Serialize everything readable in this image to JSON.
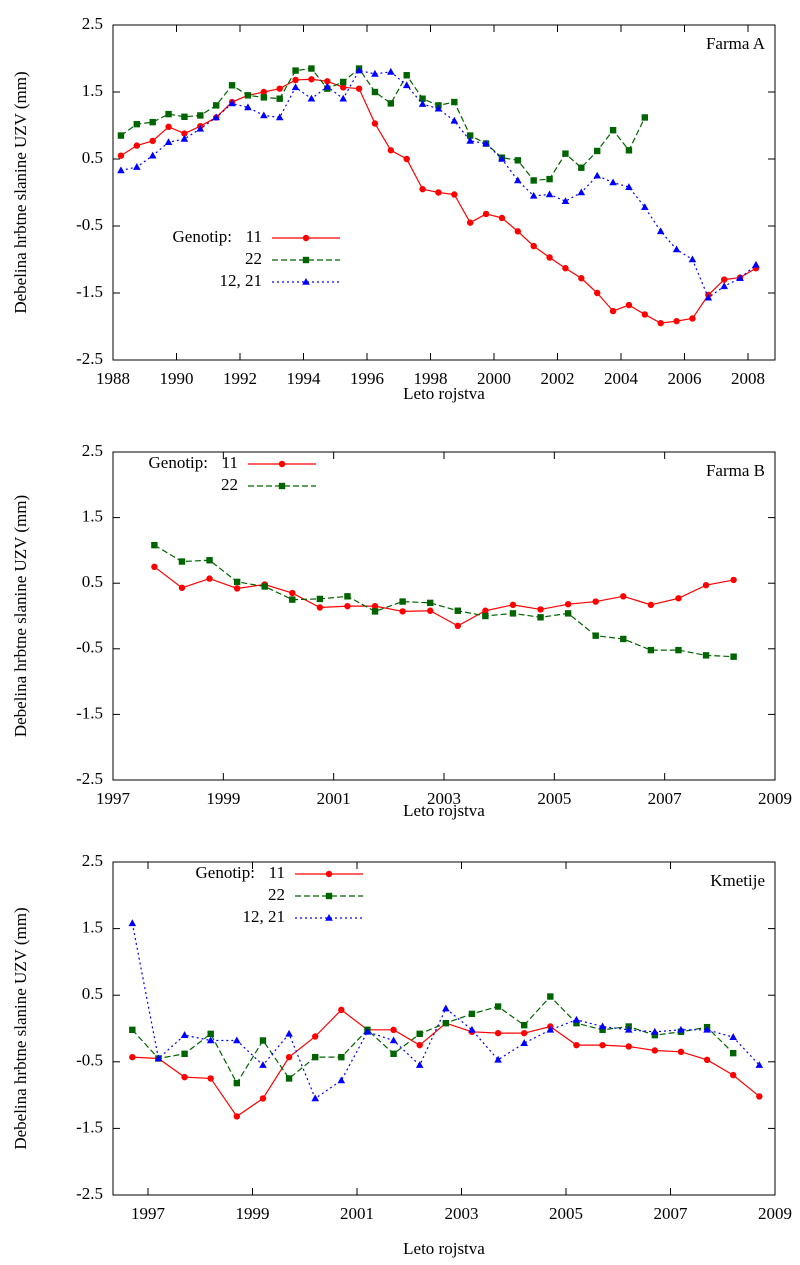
{
  "chart_data": [
    {
      "type": "line",
      "annotation": "Farma A",
      "xlabel": "Leto rojstva",
      "ylabel": "Debelina hrbtne slanine UZV (mm)",
      "xlim": [
        1988,
        2008.85
      ],
      "xticks": [
        1988,
        1990,
        1992,
        1994,
        1996,
        1998,
        2000,
        2002,
        2004,
        2006,
        2008
      ],
      "ylim": [
        -2.5,
        2.5
      ],
      "yticks": [
        -2.5,
        -1.5,
        -0.5,
        0.5,
        1.5,
        2.5
      ],
      "legend": "lower-left",
      "legend_title": "Genotip:",
      "x": [
        1988.25,
        1988.75,
        1989.25,
        1989.75,
        1990.25,
        1990.75,
        1991.25,
        1991.75,
        1992.25,
        1992.75,
        1993.25,
        1993.75,
        1994.25,
        1994.75,
        1995.25,
        1995.75,
        1996.25,
        1996.75,
        1997.25,
        1997.75,
        1998.25,
        1998.75,
        1999.25,
        1999.75,
        2000.25,
        2000.75,
        2001.25,
        2001.75,
        2002.25,
        2002.75,
        2003.25,
        2003.75,
        2004.25,
        2004.75,
        2005.25,
        2005.75,
        2006.25,
        2006.75,
        2007.25,
        2007.75,
        2008.25
      ],
      "series": [
        {
          "name": "11",
          "color": "#ff0000",
          "marker": "circle",
          "linestyle": "solid",
          "values": [
            0.55,
            0.7,
            0.77,
            0.98,
            0.88,
            0.99,
            1.12,
            1.35,
            1.45,
            1.5,
            1.55,
            1.68,
            1.69,
            1.66,
            1.57,
            1.55,
            1.03,
            0.63,
            0.5,
            0.05,
            0.0,
            -0.03,
            -0.45,
            -0.32,
            -0.38,
            -0.58,
            -0.8,
            -0.97,
            -1.13,
            -1.28,
            -1.5,
            -1.77,
            -1.68,
            -1.82,
            -1.95,
            -1.92,
            -1.88,
            -1.53,
            -1.3,
            -1.27,
            -1.13
          ]
        },
        {
          "name": "22",
          "color": "#006400",
          "marker": "square",
          "linestyle": "dashed",
          "values": [
            0.85,
            1.02,
            1.05,
            1.17,
            1.13,
            1.15,
            1.3,
            1.6,
            1.45,
            1.42,
            1.4,
            1.82,
            1.85,
            1.55,
            1.65,
            1.85,
            1.5,
            1.33,
            1.75,
            1.4,
            1.3,
            1.35,
            0.85,
            0.73,
            0.52,
            0.48,
            0.18,
            0.2,
            0.58,
            0.37,
            0.62,
            0.93,
            0.63,
            1.12,
            null,
            null,
            null,
            null,
            null,
            null,
            null
          ]
        },
        {
          "name": "12, 21",
          "color": "#0000ff",
          "marker": "triangle",
          "linestyle": "dotted",
          "values": [
            0.33,
            0.38,
            0.55,
            0.75,
            0.8,
            0.95,
            1.12,
            1.33,
            1.27,
            1.15,
            1.12,
            1.57,
            1.4,
            1.58,
            1.4,
            1.82,
            1.77,
            1.8,
            1.6,
            1.32,
            1.25,
            1.07,
            0.77,
            0.73,
            0.5,
            0.18,
            -0.05,
            -0.03,
            -0.13,
            0.0,
            0.25,
            0.15,
            0.08,
            -0.22,
            -0.58,
            -0.85,
            -1.0,
            -1.57,
            -1.4,
            -1.28,
            -1.08
          ]
        }
      ]
    },
    {
      "type": "line",
      "annotation": "Farma B",
      "xlabel": "Leto rojstva",
      "ylabel": "Debelina hrbtne slanine UZV (mm)",
      "xlim": [
        1997,
        2009
      ],
      "xticks": [
        1997,
        1999,
        2001,
        2003,
        2005,
        2007,
        2009
      ],
      "ylim": [
        -2.5,
        2.5
      ],
      "yticks": [
        -2.5,
        -1.5,
        -0.5,
        0.5,
        1.5,
        2.5
      ],
      "legend": "upper-left",
      "legend_title": "Genotip:",
      "x": [
        1997.75,
        1998.25,
        1998.75,
        1999.25,
        1999.75,
        2000.25,
        2000.75,
        2001.25,
        2001.75,
        2002.25,
        2002.75,
        2003.25,
        2003.75,
        2004.25,
        2004.75,
        2005.25,
        2005.75,
        2006.25,
        2006.75,
        2007.25,
        2007.75,
        2008.25
      ],
      "series": [
        {
          "name": "11",
          "color": "#ff0000",
          "marker": "circle",
          "linestyle": "solid",
          "values": [
            0.75,
            0.43,
            0.57,
            0.42,
            0.48,
            0.35,
            0.13,
            0.15,
            0.15,
            0.07,
            0.08,
            -0.15,
            0.08,
            0.17,
            0.1,
            0.18,
            0.22,
            0.3,
            0.17,
            0.27,
            0.47,
            0.55
          ]
        },
        {
          "name": "22",
          "color": "#006400",
          "marker": "square",
          "linestyle": "dashed",
          "values": [
            1.08,
            0.83,
            0.85,
            0.52,
            0.45,
            0.25,
            0.26,
            0.3,
            0.07,
            0.22,
            0.2,
            0.08,
            0.0,
            0.04,
            -0.02,
            0.04,
            -0.3,
            -0.35,
            -0.52,
            -0.52,
            -0.6,
            -0.62
          ]
        }
      ]
    },
    {
      "type": "line",
      "annotation": "Kmetije",
      "xlabel": "Leto rojstva",
      "ylabel": "Debelina hrbtne slanine UZV (mm)",
      "xlim": [
        1996.33,
        2009
      ],
      "xticks": [
        1997,
        1999,
        2001,
        2003,
        2005,
        2007,
        2009
      ],
      "ylim": [
        -2.5,
        2.5
      ],
      "yticks": [
        -2.5,
        -1.5,
        -0.5,
        0.5,
        1.5,
        2.5
      ],
      "legend": "upper-left",
      "legend_title": "Genotip:",
      "x": [
        1996.7,
        1997.2,
        1997.7,
        1998.2,
        1998.7,
        1999.2,
        1999.7,
        2000.2,
        2000.7,
        2001.2,
        2001.7,
        2002.2,
        2002.7,
        2003.2,
        2003.7,
        2004.2,
        2004.7,
        2005.2,
        2005.7,
        2006.2,
        2006.7,
        2007.2,
        2007.7,
        2008.2,
        2008.7
      ],
      "series": [
        {
          "name": "11",
          "color": "#ff0000",
          "marker": "circle",
          "linestyle": "solid",
          "values": [
            -0.43,
            -0.45,
            -0.73,
            -0.75,
            -1.32,
            -1.05,
            -0.43,
            -0.12,
            0.28,
            -0.02,
            -0.02,
            -0.25,
            0.08,
            -0.05,
            -0.07,
            -0.07,
            0.03,
            -0.25,
            -0.25,
            -0.27,
            -0.33,
            -0.35,
            -0.47,
            -0.7,
            -1.02
          ]
        },
        {
          "name": "22",
          "color": "#006400",
          "marker": "square",
          "linestyle": "dashed",
          "values": [
            -0.02,
            -0.45,
            -0.38,
            -0.08,
            -0.82,
            -0.18,
            -0.75,
            -0.43,
            -0.43,
            -0.02,
            -0.38,
            -0.08,
            0.08,
            0.22,
            0.33,
            0.05,
            0.48,
            0.08,
            -0.02,
            0.03,
            -0.1,
            -0.05,
            0.02,
            -0.37,
            null
          ]
        },
        {
          "name": "12, 21",
          "color": "#0000ff",
          "marker": "triangle",
          "linestyle": "dotted",
          "values": [
            1.58,
            -0.45,
            -0.1,
            -0.18,
            -0.18,
            -0.55,
            -0.08,
            -1.05,
            -0.78,
            -0.05,
            -0.18,
            -0.55,
            0.3,
            -0.02,
            -0.47,
            -0.22,
            -0.02,
            0.13,
            0.03,
            -0.02,
            -0.05,
            -0.02,
            -0.02,
            -0.13,
            -0.55
          ]
        }
      ]
    }
  ]
}
